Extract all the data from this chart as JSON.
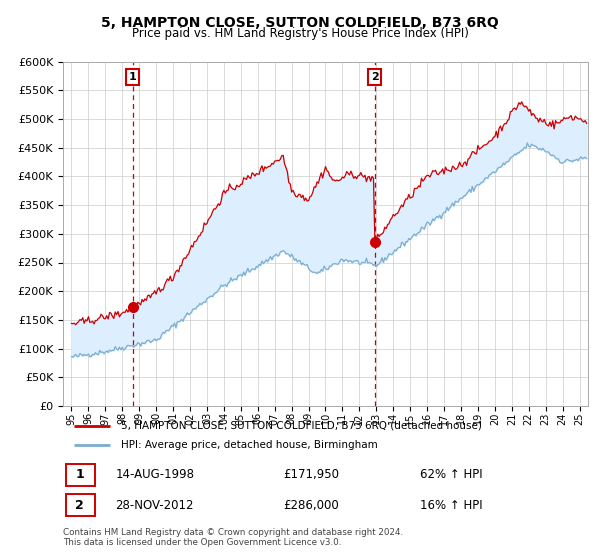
{
  "title": "5, HAMPTON CLOSE, SUTTON COLDFIELD, B73 6RQ",
  "subtitle": "Price paid vs. HM Land Registry's House Price Index (HPI)",
  "legend_line1": "5, HAMPTON CLOSE, SUTTON COLDFIELD, B73 6RQ (detached house)",
  "legend_line2": "HPI: Average price, detached house, Birmingham",
  "table_row1_date": "14-AUG-1998",
  "table_row1_price": "£171,950",
  "table_row1_hpi": "62% ↑ HPI",
  "table_row2_date": "28-NOV-2012",
  "table_row2_price": "£286,000",
  "table_row2_hpi": "16% ↑ HPI",
  "footer": "Contains HM Land Registry data © Crown copyright and database right 2024.\nThis data is licensed under the Open Government Licence v3.0.",
  "sale1_x": 1998.62,
  "sale1_y": 171950,
  "sale2_x": 2012.91,
  "sale2_y": 286000,
  "red_color": "#cc0000",
  "blue_color": "#7aadcf",
  "fill_color": "#ddeeff",
  "grid_color": "#cccccc",
  "ylim": [
    0,
    600000
  ],
  "xlim_start": 1994.5,
  "xlim_end": 2025.5
}
